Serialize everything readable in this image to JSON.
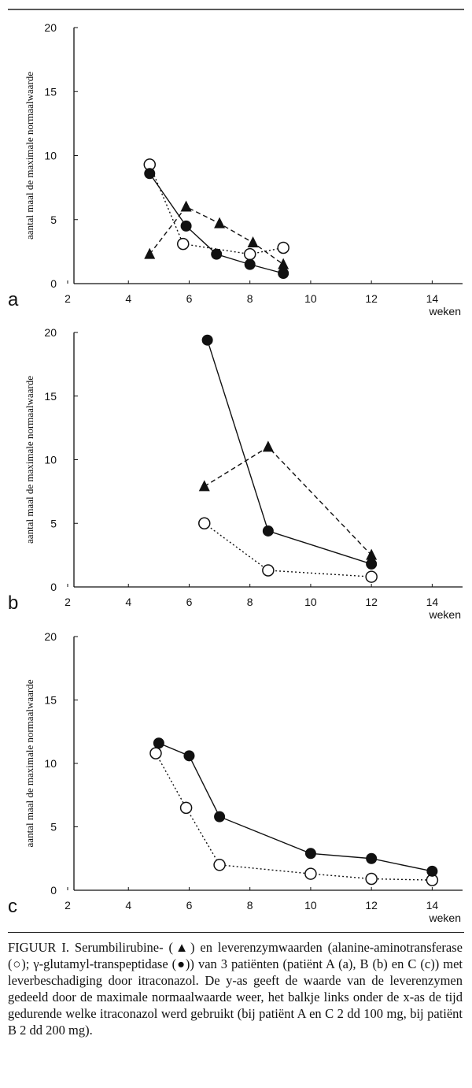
{
  "chart_data": [
    {
      "type": "line",
      "panel_label": "a",
      "ylabel": "aantal maal de maximale normaalwaarde",
      "xlabel": "weken",
      "xlim": [
        2,
        15
      ],
      "ylim": [
        0,
        20
      ],
      "xticks": [
        2,
        4,
        6,
        8,
        10,
        12,
        14
      ],
      "yticks": [
        0,
        5,
        10,
        15,
        20
      ],
      "series": [
        {
          "marker": "triangle",
          "line_style": "dashed",
          "color": "#111111",
          "x": [
            4.7,
            5.9,
            7.0,
            8.1,
            9.1
          ],
          "values": [
            2.3,
            6.0,
            4.7,
            3.2,
            1.5
          ]
        },
        {
          "marker": "open-circle",
          "line_style": "dotted",
          "color": "#111111",
          "x": [
            4.7,
            5.8,
            8.0,
            9.1
          ],
          "values": [
            9.3,
            3.1,
            2.3,
            2.8
          ]
        },
        {
          "marker": "filled-circle",
          "line_style": "solid",
          "color": "#111111",
          "x": [
            4.7,
            5.9,
            6.9,
            8.0,
            9.1
          ],
          "values": [
            8.6,
            4.5,
            2.3,
            1.5,
            0.8
          ]
        }
      ]
    },
    {
      "type": "line",
      "panel_label": "b",
      "ylabel": "aantal maal de maximale normaalwaarde",
      "xlabel": "weken",
      "xlim": [
        2,
        15
      ],
      "ylim": [
        0,
        20
      ],
      "xticks": [
        2,
        4,
        6,
        8,
        10,
        12,
        14
      ],
      "yticks": [
        0,
        5,
        10,
        15,
        20
      ],
      "series": [
        {
          "marker": "triangle",
          "line_style": "dashed",
          "color": "#111111",
          "x": [
            6.5,
            8.6,
            12.0
          ],
          "values": [
            7.9,
            11.0,
            2.5
          ]
        },
        {
          "marker": "open-circle",
          "line_style": "dotted",
          "color": "#111111",
          "x": [
            6.5,
            8.6,
            12.0
          ],
          "values": [
            5.0,
            1.3,
            0.8
          ]
        },
        {
          "marker": "filled-circle",
          "line_style": "solid",
          "color": "#111111",
          "x": [
            6.6,
            8.6,
            12.0
          ],
          "values": [
            19.4,
            4.4,
            1.8
          ]
        }
      ]
    },
    {
      "type": "line",
      "panel_label": "c",
      "ylabel": "aantal maal de maximale normaalwaarde",
      "xlabel": "weken",
      "xlim": [
        2,
        15
      ],
      "ylim": [
        0,
        20
      ],
      "xticks": [
        2,
        4,
        6,
        8,
        10,
        12,
        14
      ],
      "yticks": [
        0,
        5,
        10,
        15,
        20
      ],
      "series": [
        {
          "marker": "open-circle",
          "line_style": "dotted",
          "color": "#111111",
          "x": [
            4.9,
            5.9,
            7.0,
            10.0,
            12.0,
            14.0
          ],
          "values": [
            10.8,
            6.5,
            2.0,
            1.3,
            0.9,
            0.8
          ]
        },
        {
          "marker": "filled-circle",
          "line_style": "solid",
          "color": "#111111",
          "x": [
            5.0,
            6.0,
            7.0,
            10.0,
            12.0,
            14.0
          ],
          "values": [
            11.6,
            10.6,
            5.8,
            2.9,
            2.5,
            1.5
          ]
        }
      ]
    }
  ],
  "caption": "FIGUUR I. Serumbilirubine- (▲) en leverenzymwaarden (alanine-aminotransferase (○); γ-glutamyl-transpeptidase (●)) van 3 patiënten (patiënt A (a), B (b) en C (c)) met leverbeschadiging door itraconazol. De y-as geeft de waarde van de leverenzymen gedeeld door de maximale normaalwaarde weer, het balkje links onder de x-as de tijd gedurende welke itraconazol werd gebruikt (bij patiënt A en C 2 dd 100 mg, bij patiënt B 2 dd 200 mg)."
}
